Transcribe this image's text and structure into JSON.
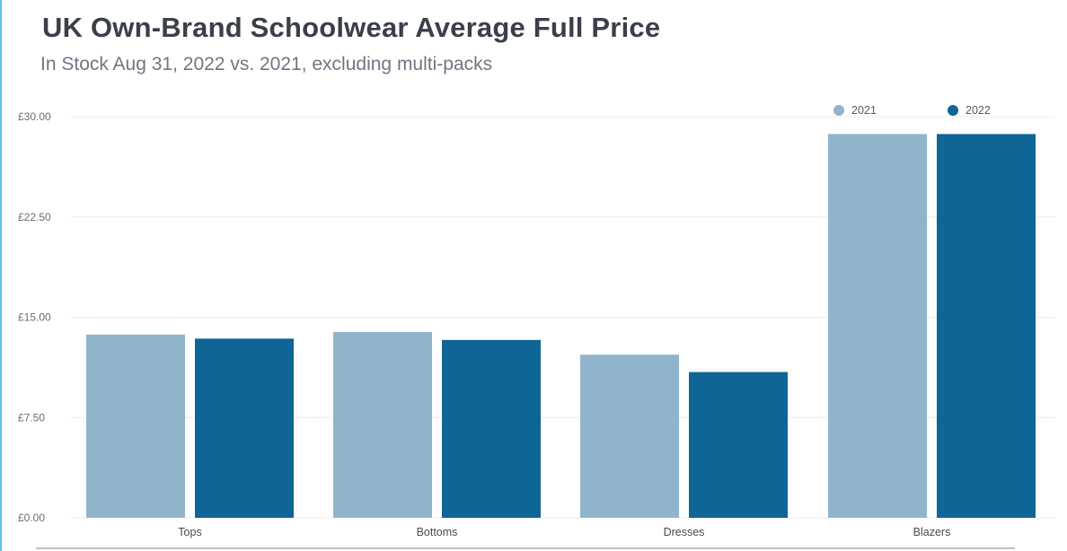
{
  "title": "UK Own-Brand Schoolwear Average Full Price",
  "subtitle": "In Stock Aug 31, 2022 vs. 2021, excluding multi-packs",
  "colors": {
    "s2021": "#91b4cd",
    "s2022": "#0f6595",
    "grid": "#ececec",
    "accent": "#5bc8e0"
  },
  "chart_data": {
    "type": "bar",
    "categories": [
      "Tops",
      "Bottoms",
      "Dresses",
      "Blazers"
    ],
    "series": [
      {
        "name": "2021",
        "values": [
          13.7,
          13.9,
          12.2,
          28.7
        ]
      },
      {
        "name": "2022",
        "values": [
          13.4,
          13.3,
          10.9,
          28.7
        ]
      }
    ],
    "yticks": [
      "£0.00",
      "£7.50",
      "£15.00",
      "£22.50",
      "£30.00"
    ],
    "ytick_values": [
      0,
      7.5,
      15,
      22.5,
      30
    ],
    "ylim": [
      0,
      30
    ],
    "grid": true,
    "legend": "top-right"
  }
}
